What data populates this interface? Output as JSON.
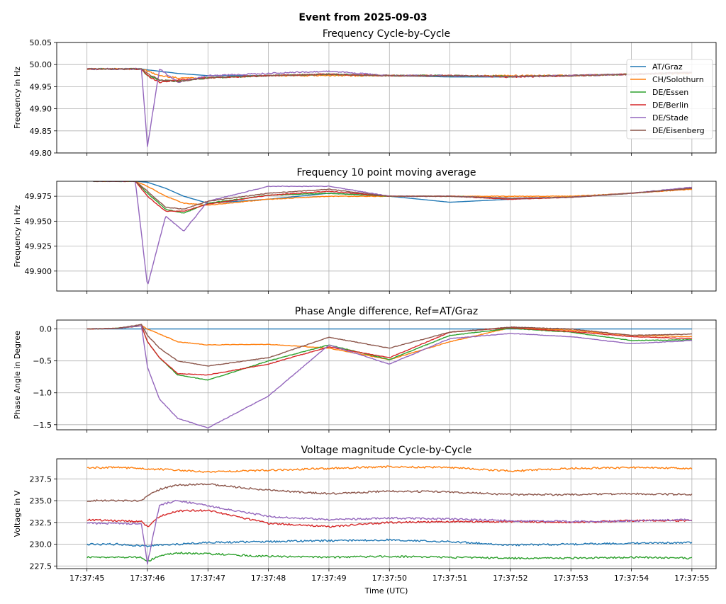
{
  "figure": {
    "suptitle": "Event from 2025-09-03",
    "xlabel": "Time (UTC)",
    "x_ticks": [
      "17:37:45",
      "17:37:46",
      "17:37:47",
      "17:37:48",
      "17:37:49",
      "17:37:50",
      "17:37:51",
      "17:37:52",
      "17:37:53",
      "17:37:54",
      "17:37:55"
    ],
    "x_range_seconds_after_17_37_45": [
      -0.5,
      10.4
    ]
  },
  "series_styles": [
    {
      "name": "AT/Graz",
      "color": "#1f77b4"
    },
    {
      "name": "CH/Solothurn",
      "color": "#ff7f0e"
    },
    {
      "name": "DE/Essen",
      "color": "#2ca02c"
    },
    {
      "name": "DE/Berlin",
      "color": "#d62728"
    },
    {
      "name": "DE/Stade",
      "color": "#9467bd"
    },
    {
      "name": "DE/Eisenberg",
      "color": "#8c564b"
    }
  ],
  "chart_data": [
    {
      "type": "line",
      "title": "Frequency Cycle-by-Cycle",
      "ylabel": "Frequency in Hz",
      "ylim": [
        49.8,
        50.05
      ],
      "yticks": [
        49.8,
        49.85,
        49.9,
        49.95,
        50.0,
        50.05
      ],
      "ytick_labels": [
        "49.80",
        "49.85",
        "49.90",
        "49.95",
        "50.00",
        "50.05"
      ],
      "grid": true,
      "legend": "upper right",
      "x": [
        0,
        0.5,
        0.9,
        1.0,
        1.2,
        1.5,
        2.0,
        3.0,
        4.0,
        5.0,
        6.0,
        7.0,
        8.0,
        9.0,
        10.0
      ],
      "series": [
        {
          "name": "AT/Graz",
          "values": [
            49.99,
            49.99,
            49.99,
            49.988,
            49.985,
            49.98,
            49.975,
            49.975,
            49.978,
            49.975,
            49.972,
            49.972,
            49.975,
            49.978,
            49.982
          ]
        },
        {
          "name": "CH/Solothurn",
          "values": [
            49.99,
            49.99,
            49.99,
            49.985,
            49.975,
            49.97,
            49.97,
            49.975,
            49.975,
            49.975,
            49.975,
            49.975,
            49.975,
            49.978,
            49.98
          ]
        },
        {
          "name": "DE/Essen",
          "values": [
            49.99,
            49.99,
            49.99,
            49.975,
            49.965,
            49.962,
            49.97,
            49.975,
            49.978,
            49.975,
            49.975,
            49.973,
            49.975,
            49.978,
            49.982
          ]
        },
        {
          "name": "DE/Berlin",
          "values": [
            49.99,
            49.99,
            49.99,
            49.975,
            49.96,
            49.965,
            49.97,
            49.975,
            49.978,
            49.975,
            49.975,
            49.972,
            49.975,
            49.978,
            49.982
          ]
        },
        {
          "name": "DE/Stade",
          "values": [
            49.99,
            49.99,
            49.99,
            49.815,
            49.99,
            49.96,
            49.975,
            49.98,
            49.985,
            49.975,
            49.975,
            49.973,
            49.975,
            49.978,
            49.982
          ]
        },
        {
          "name": "DE/Eisenberg",
          "values": [
            49.99,
            49.99,
            49.99,
            49.98,
            49.965,
            49.962,
            49.97,
            49.975,
            49.978,
            49.975,
            49.975,
            49.973,
            49.975,
            49.978,
            49.982
          ]
        }
      ]
    },
    {
      "type": "line",
      "title": "Frequency 10 point moving average",
      "ylabel": "Frequency in Hz",
      "ylim": [
        49.88,
        49.99
      ],
      "yticks": [
        49.9,
        49.925,
        49.95,
        49.975
      ],
      "ytick_labels": [
        "49.900",
        "49.925",
        "49.950",
        "49.975"
      ],
      "grid": true,
      "x": [
        0.1,
        0.5,
        0.8,
        1.0,
        1.3,
        1.6,
        2.0,
        3.0,
        4.0,
        5.0,
        6.0,
        7.0,
        8.0,
        9.0,
        10.0
      ],
      "series": [
        {
          "name": "AT/Graz",
          "values": [
            49.99,
            49.99,
            49.99,
            49.989,
            49.983,
            49.975,
            49.968,
            49.972,
            49.978,
            49.975,
            49.969,
            49.972,
            49.974,
            49.978,
            49.983
          ]
        },
        {
          "name": "CH/Solothurn",
          "values": [
            49.99,
            49.99,
            49.99,
            49.985,
            49.975,
            49.968,
            49.966,
            49.972,
            49.975,
            49.975,
            49.975,
            49.975,
            49.975,
            49.978,
            49.982
          ]
        },
        {
          "name": "DE/Essen",
          "values": [
            49.99,
            49.99,
            49.99,
            49.978,
            49.962,
            49.958,
            49.968,
            49.976,
            49.978,
            49.975,
            49.975,
            49.973,
            49.974,
            49.978,
            49.983
          ]
        },
        {
          "name": "DE/Berlin",
          "values": [
            49.99,
            49.99,
            49.99,
            49.975,
            49.96,
            49.96,
            49.967,
            49.976,
            49.98,
            49.975,
            49.975,
            49.972,
            49.974,
            49.978,
            49.983
          ]
        },
        {
          "name": "DE/Stade",
          "values": [
            49.99,
            49.99,
            49.99,
            49.885,
            49.955,
            49.94,
            49.97,
            49.985,
            49.985,
            49.975,
            49.975,
            49.973,
            49.974,
            49.978,
            49.984
          ]
        },
        {
          "name": "DE/Eisenberg",
          "values": [
            49.99,
            49.99,
            49.99,
            49.98,
            49.964,
            49.962,
            49.97,
            49.978,
            49.982,
            49.975,
            49.975,
            49.973,
            49.974,
            49.978,
            49.983
          ]
        }
      ]
    },
    {
      "type": "line",
      "title": "Phase Angle difference, Ref=AT/Graz",
      "ylabel": "Phase Angle in Degree",
      "ylim": [
        -1.58,
        0.14
      ],
      "yticks": [
        -1.5,
        -1.0,
        -0.5,
        0.0
      ],
      "ytick_labels": [
        "−1.5",
        "−1.0",
        "−0.5",
        "0.0"
      ],
      "grid": true,
      "x": [
        0,
        0.5,
        0.9,
        1.0,
        1.2,
        1.5,
        2.0,
        3.0,
        4.0,
        5.0,
        6.0,
        7.0,
        8.0,
        9.0,
        10.0
      ],
      "series": [
        {
          "name": "AT/Graz",
          "values": [
            0,
            0,
            0,
            0,
            0,
            0,
            0,
            0,
            0,
            0,
            0,
            0,
            0,
            0,
            0
          ]
        },
        {
          "name": "CH/Solothurn",
          "values": [
            0,
            0.01,
            0.05,
            0.0,
            -0.08,
            -0.2,
            -0.25,
            -0.24,
            -0.3,
            -0.48,
            -0.2,
            0.02,
            -0.02,
            -0.1,
            -0.12
          ]
        },
        {
          "name": "DE/Essen",
          "values": [
            0,
            0.01,
            0.05,
            -0.2,
            -0.45,
            -0.72,
            -0.8,
            -0.5,
            -0.25,
            -0.48,
            -0.1,
            0.01,
            -0.05,
            -0.18,
            -0.17
          ]
        },
        {
          "name": "DE/Berlin",
          "values": [
            0,
            0.01,
            0.05,
            -0.2,
            -0.45,
            -0.7,
            -0.72,
            -0.55,
            -0.28,
            -0.45,
            -0.05,
            0.02,
            -0.04,
            -0.12,
            -0.15
          ]
        },
        {
          "name": "DE/Stade",
          "values": [
            0,
            0.01,
            0.05,
            -0.6,
            -1.1,
            -1.4,
            -1.55,
            -1.05,
            -0.25,
            -0.55,
            -0.15,
            -0.07,
            -0.12,
            -0.23,
            -0.18
          ]
        },
        {
          "name": "DE/Eisenberg",
          "values": [
            0,
            0.01,
            0.07,
            -0.1,
            -0.3,
            -0.5,
            -0.58,
            -0.45,
            -0.13,
            -0.3,
            -0.05,
            0.03,
            0.0,
            -0.1,
            -0.08
          ]
        }
      ]
    },
    {
      "type": "line",
      "title": "Voltage magnitude Cycle-by-Cycle",
      "ylabel": "Voltage in V",
      "ylim": [
        227.2,
        239.8
      ],
      "yticks": [
        227.5,
        230.0,
        232.5,
        235.0,
        237.5
      ],
      "ytick_labels": [
        "227.5",
        "230.0",
        "232.5",
        "235.0",
        "237.5"
      ],
      "grid": true,
      "x": [
        0,
        0.5,
        0.9,
        1.0,
        1.2,
        1.5,
        2.0,
        3.0,
        4.0,
        5.0,
        6.0,
        7.0,
        8.0,
        9.0,
        10.0
      ],
      "series": [
        {
          "name": "AT/Graz",
          "values": [
            230.0,
            230.0,
            229.8,
            229.8,
            229.9,
            230.0,
            230.2,
            230.3,
            230.4,
            230.5,
            230.3,
            229.9,
            230.0,
            230.1,
            230.2
          ]
        },
        {
          "name": "CH/Solothurn",
          "values": [
            238.8,
            238.8,
            238.7,
            238.6,
            238.6,
            238.5,
            238.3,
            238.5,
            238.7,
            238.9,
            238.8,
            238.4,
            238.7,
            238.8,
            238.7
          ]
        },
        {
          "name": "DE/Essen",
          "values": [
            228.5,
            228.5,
            228.5,
            228.0,
            228.7,
            229.0,
            228.9,
            228.6,
            228.5,
            228.6,
            228.5,
            228.4,
            228.4,
            228.5,
            228.4
          ]
        },
        {
          "name": "DE/Berlin",
          "values": [
            232.8,
            232.7,
            232.6,
            232.0,
            233.2,
            233.8,
            233.9,
            232.4,
            232.0,
            232.5,
            232.6,
            232.6,
            232.5,
            232.7,
            232.7
          ]
        },
        {
          "name": "DE/Stade",
          "values": [
            232.4,
            232.4,
            232.3,
            227.8,
            234.5,
            235.0,
            234.4,
            233.2,
            232.8,
            233.0,
            232.9,
            232.7,
            232.6,
            232.7,
            232.8
          ]
        },
        {
          "name": "DE/Eisenberg",
          "values": [
            235.0,
            235.0,
            235.0,
            235.5,
            236.3,
            236.8,
            236.9,
            236.2,
            235.8,
            236.1,
            236.0,
            235.7,
            235.7,
            235.8,
            235.7
          ]
        }
      ]
    }
  ]
}
